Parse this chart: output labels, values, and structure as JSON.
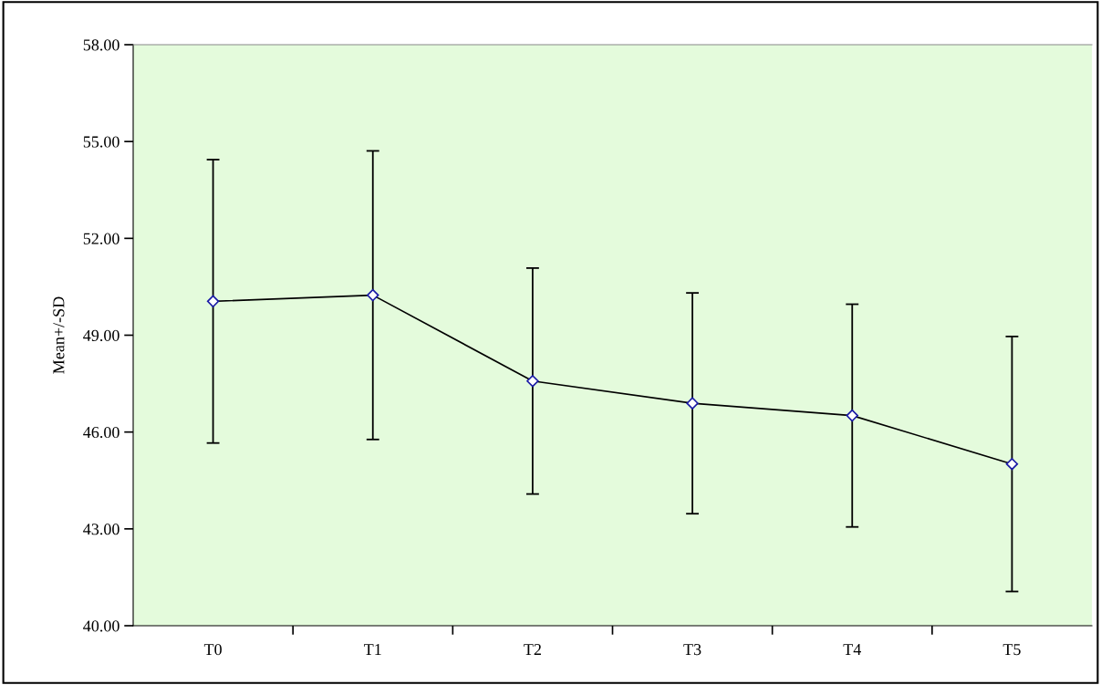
{
  "chart_data": {
    "type": "line",
    "ylabel": "Mean+/-SD",
    "categories": [
      "T0",
      "T1",
      "T2",
      "T3",
      "T4",
      "T5"
    ],
    "series": [
      {
        "color": "#000000",
        "values": [
          50.05,
          50.24,
          47.58,
          46.89,
          46.51,
          45.01
        ],
        "errors": [
          4.39,
          4.47,
          3.5,
          3.42,
          3.45,
          3.95
        ]
      }
    ],
    "ylim": [
      40,
      58
    ],
    "yticks": [
      {
        "value": 40,
        "label": "40.00"
      },
      {
        "value": 43,
        "label": "43.00"
      },
      {
        "value": 46,
        "label": "46.00"
      },
      {
        "value": 49,
        "label": "49.00"
      },
      {
        "value": 52,
        "label": "52.00"
      },
      {
        "value": 55,
        "label": "55.00"
      },
      {
        "value": 58,
        "label": "58.00"
      }
    ],
    "marker": "diamond",
    "line_style": "solid",
    "grid": false,
    "legend": false
  }
}
